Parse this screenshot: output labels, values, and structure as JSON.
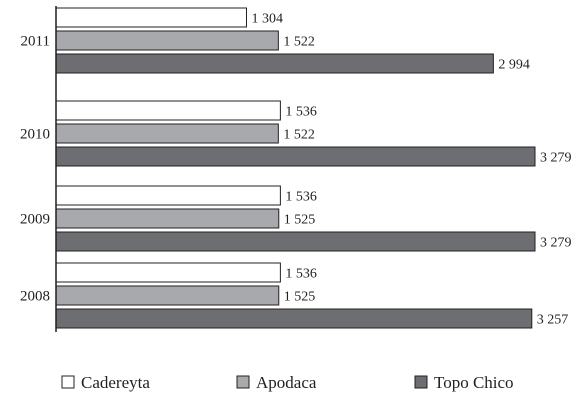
{
  "chart_data": {
    "type": "bar",
    "orientation": "horizontal",
    "categories": [
      "2011",
      "2010",
      "2009",
      "2008"
    ],
    "series": [
      {
        "name": "Cadereyta",
        "values": [
          1304,
          1536,
          1536,
          1536
        ],
        "labels": [
          "1 304",
          "1 536",
          "1 536",
          "1 536"
        ]
      },
      {
        "name": "Apodaca",
        "values": [
          1522,
          1522,
          1525,
          1525
        ],
        "labels": [
          "1 522",
          "1 522",
          "1 525",
          "1 525"
        ]
      },
      {
        "name": "Topo Chico",
        "values": [
          2994,
          3279,
          3279,
          3257
        ],
        "labels": [
          "2 994",
          "3 279",
          "3 279",
          "3 257"
        ]
      }
    ],
    "colors": [
      "#ffffff",
      "#a7a9ac",
      "#6d6e71"
    ],
    "xlim": [
      0,
      3279
    ],
    "title": "",
    "xlabel": "",
    "ylabel": "",
    "grid": false,
    "legend_position": "bottom"
  }
}
